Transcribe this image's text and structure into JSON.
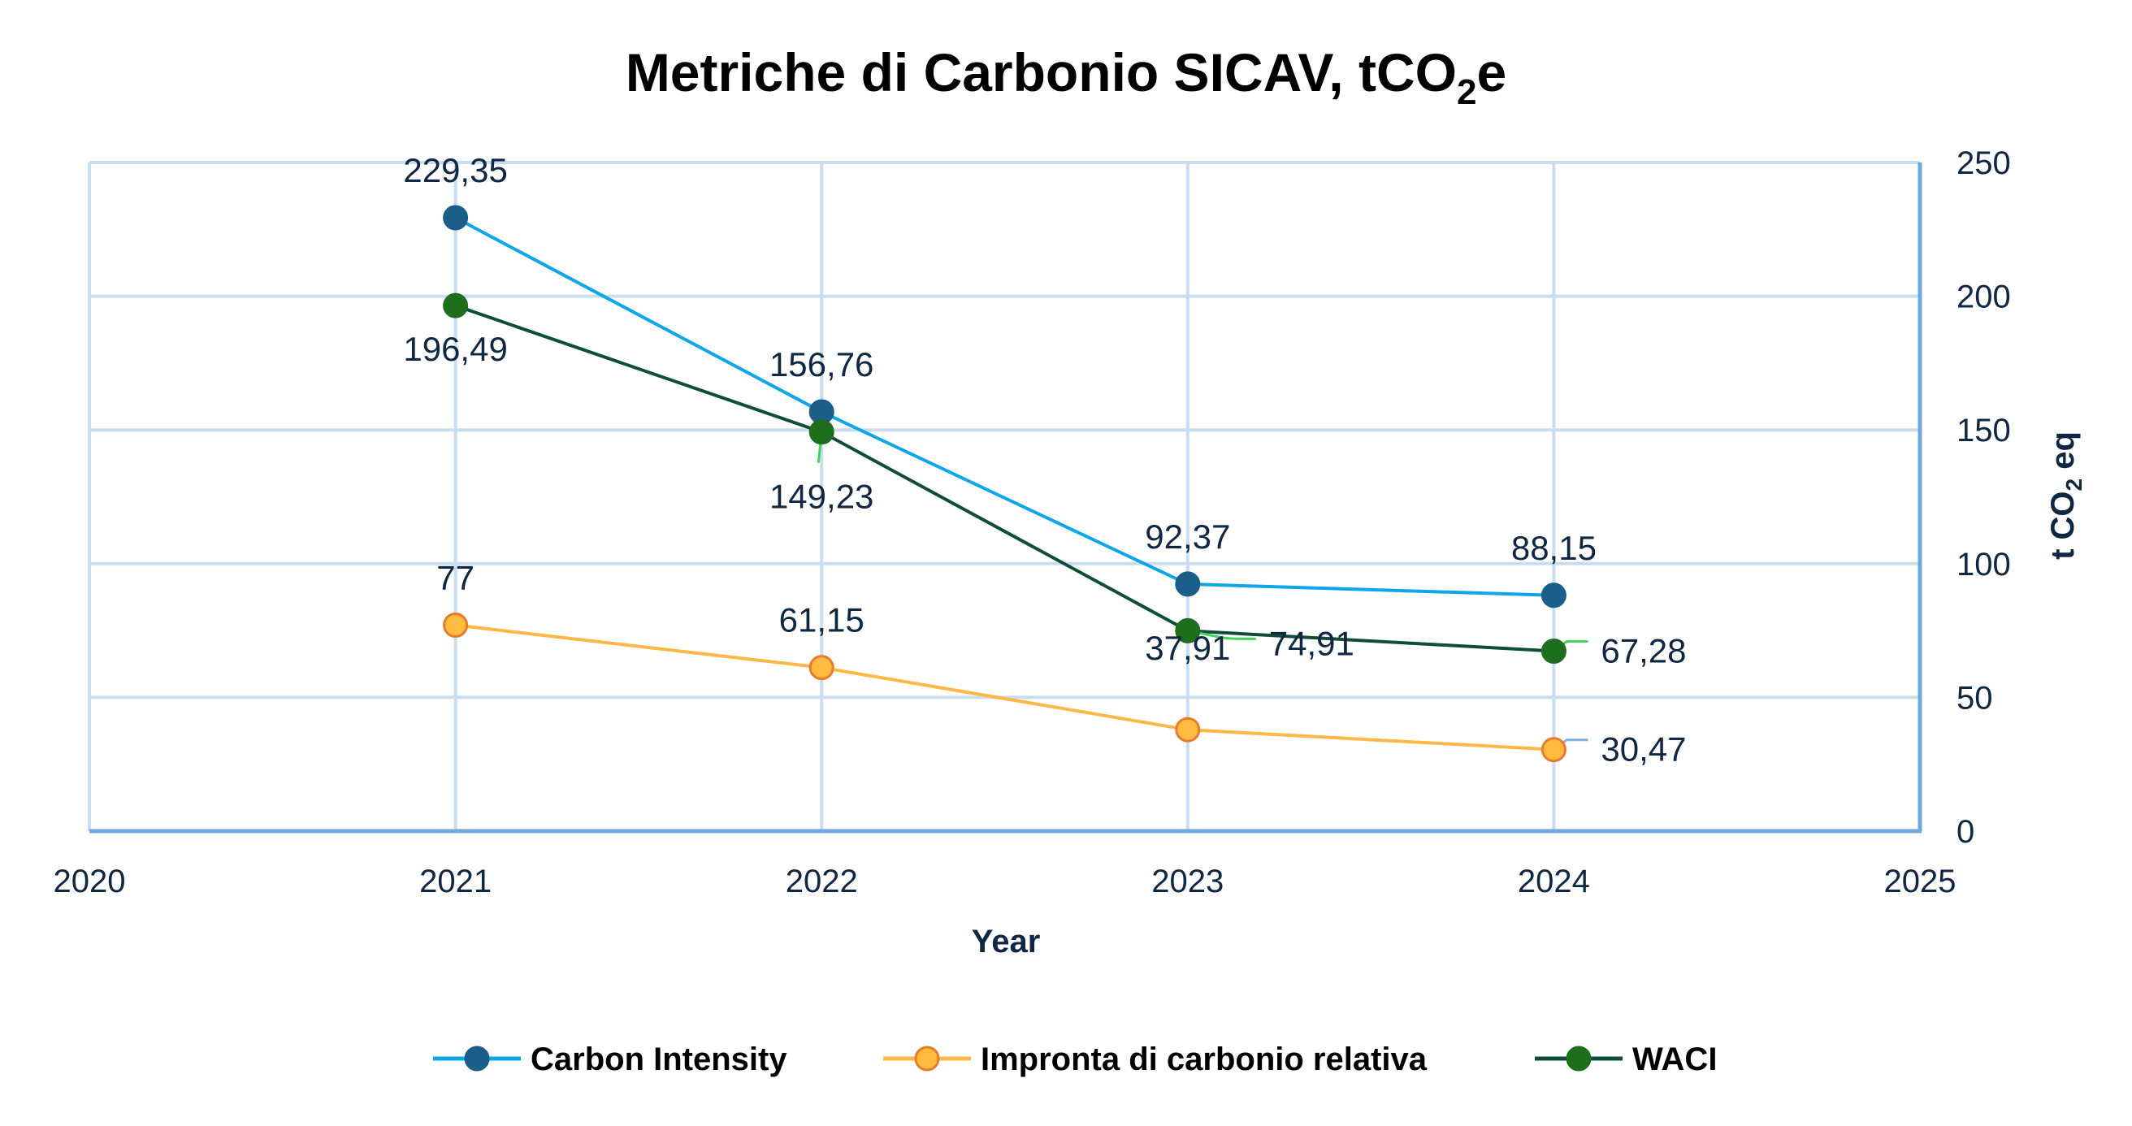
{
  "chart_data": {
    "type": "line",
    "title": "Metriche di Carbonio SICAV, tCO",
    "title_sub": "2",
    "title_suffix": "e",
    "xlabel": "Year",
    "ylabel": "t CO",
    "ylabel_sub": "2",
    "ylabel_suffix": " eq",
    "x_ticks": [
      "2020",
      "2021",
      "2022",
      "2023",
      "2024",
      "2025"
    ],
    "xlim": [
      2020,
      2025
    ],
    "y_ticks": [
      "0",
      "50",
      "100",
      "150",
      "200",
      "250"
    ],
    "ylim": [
      0,
      250
    ],
    "y_axis_side": "right",
    "grid": true,
    "legend_position": "bottom",
    "x": [
      2021,
      2022,
      2023,
      2024
    ],
    "series": [
      {
        "name": "Carbon Intensity",
        "values": [
          229.35,
          156.76,
          92.37,
          88.15
        ],
        "labels": [
          "229,35",
          "156,76",
          "92,37",
          "88,15"
        ],
        "label_pos": [
          "above",
          "above",
          "above",
          "above"
        ],
        "line_color": "#0EA5E9",
        "marker_fill": "#1B5E8A",
        "marker_stroke": "#1B5E8A"
      },
      {
        "name": "Impronta di carbonio relativa",
        "values": [
          77,
          61.15,
          37.91,
          30.47
        ],
        "labels": [
          "77",
          "61,15",
          "37,91",
          "30,47"
        ],
        "label_pos": [
          "above",
          "above",
          "above-far",
          "right-leader"
        ],
        "line_color": "#FFB845",
        "marker_fill": "#FFBA40",
        "marker_stroke": "#E97A2E",
        "leader_color": "#7FB0E0"
      },
      {
        "name": "WACI",
        "values": [
          196.49,
          149.23,
          74.91,
          67.28
        ],
        "labels": [
          "196,49",
          "149,23",
          "74,91",
          "67,28"
        ],
        "label_pos": [
          "below",
          "below-leader",
          "right-leader",
          "right-leader"
        ],
        "line_color": "#0F4D3A",
        "marker_fill": "#1E6E1E",
        "marker_stroke": "#1E6E1E",
        "leader_color": "#44D45E"
      }
    ]
  },
  "colors": {
    "grid": "#CADDF0",
    "axis": "#6FA8DC",
    "text": "#0F2742"
  }
}
